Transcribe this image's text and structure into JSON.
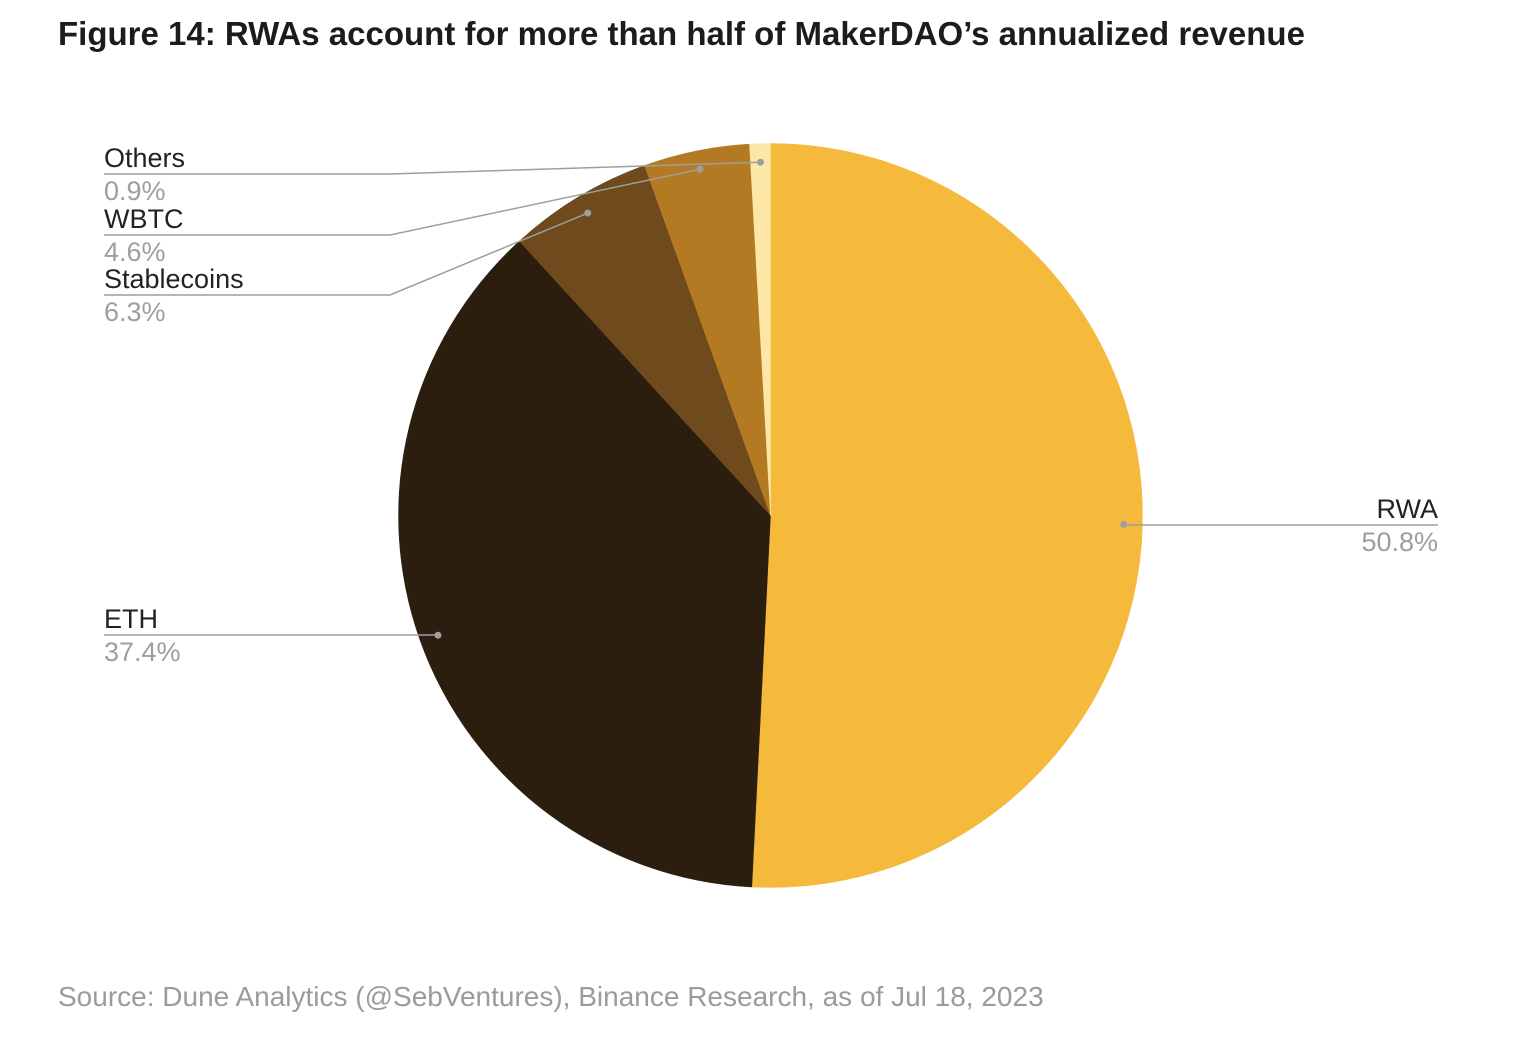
{
  "chart_data": {
    "type": "pie",
    "title": "Figure 14: RWAs account for more than half of MakerDAO’s annualized revenue",
    "legend": "none",
    "slices": [
      {
        "label": "RWA",
        "value": 50.8,
        "value_label": "50.8%",
        "color": "#F5BA3B"
      },
      {
        "label": "ETH",
        "value": 37.4,
        "value_label": "37.4%",
        "color": "#2C1E0F"
      },
      {
        "label": "Stablecoins",
        "value": 6.3,
        "value_label": "6.3%",
        "color": "#6E4A1C"
      },
      {
        "label": "WBTC",
        "value": 4.6,
        "value_label": "4.6%",
        "color": "#B47A23"
      },
      {
        "label": "Others",
        "value": 0.9,
        "value_label": "0.9%",
        "color": "#FDE7A6"
      }
    ]
  },
  "source": "Source: Dune Analytics (@SebVentures), Binance Research, as of Jul 18, 2023"
}
